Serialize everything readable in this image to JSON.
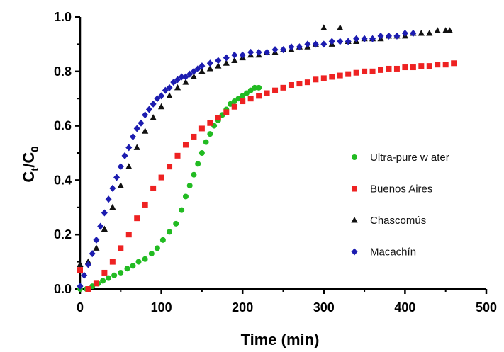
{
  "chart_data": {
    "type": "scatter",
    "title": "",
    "xlabel": "Time (min)",
    "ylabel": {
      "main": "C",
      "sub1": "t",
      "sep": "/C",
      "sub2": "0"
    },
    "xlim": [
      0,
      500
    ],
    "ylim": [
      0,
      1.0
    ],
    "xticks": [
      0,
      100,
      200,
      300,
      400,
      500
    ],
    "yticks": [
      0.0,
      0.2,
      0.4,
      0.6,
      0.8,
      1.0
    ],
    "xtick_labels": [
      "0",
      "100",
      "200",
      "300",
      "400",
      "500"
    ],
    "ytick_labels": [
      "0.0",
      "0.2",
      "0.4",
      "0.6",
      "0.8",
      "1.0"
    ],
    "grid": false,
    "legend_position": "center-right",
    "series": [
      {
        "name": "Ultra-pure w ater",
        "marker": "circle",
        "color": "#22bb22",
        "x": [
          0,
          8,
          15,
          22,
          28,
          35,
          42,
          50,
          58,
          65,
          72,
          80,
          88,
          95,
          102,
          110,
          118,
          125,
          130,
          135,
          140,
          145,
          150,
          155,
          160,
          165,
          170,
          175,
          180,
          185,
          190,
          195,
          200,
          205,
          210,
          215,
          220
        ],
        "y": [
          0.0,
          0.0,
          0.01,
          0.02,
          0.03,
          0.04,
          0.05,
          0.06,
          0.075,
          0.085,
          0.1,
          0.11,
          0.13,
          0.15,
          0.18,
          0.21,
          0.24,
          0.29,
          0.34,
          0.38,
          0.42,
          0.46,
          0.5,
          0.54,
          0.57,
          0.6,
          0.62,
          0.64,
          0.66,
          0.68,
          0.69,
          0.7,
          0.71,
          0.72,
          0.73,
          0.74,
          0.74
        ]
      },
      {
        "name": "Buenos Aires",
        "marker": "square",
        "color": "#ee2222",
        "x": [
          0,
          10,
          20,
          30,
          40,
          50,
          60,
          70,
          80,
          90,
          100,
          110,
          120,
          130,
          140,
          150,
          160,
          170,
          180,
          190,
          200,
          210,
          220,
          230,
          240,
          250,
          260,
          270,
          280,
          290,
          300,
          310,
          320,
          330,
          340,
          350,
          360,
          370,
          380,
          390,
          400,
          410,
          420,
          430,
          440,
          450,
          460
        ],
        "y": [
          0.07,
          0.0,
          0.02,
          0.06,
          0.1,
          0.15,
          0.2,
          0.26,
          0.31,
          0.37,
          0.41,
          0.45,
          0.49,
          0.53,
          0.56,
          0.59,
          0.61,
          0.63,
          0.65,
          0.67,
          0.69,
          0.7,
          0.71,
          0.72,
          0.73,
          0.74,
          0.75,
          0.755,
          0.76,
          0.77,
          0.775,
          0.78,
          0.785,
          0.79,
          0.795,
          0.8,
          0.8,
          0.805,
          0.81,
          0.81,
          0.815,
          0.815,
          0.82,
          0.82,
          0.825,
          0.825,
          0.83
        ]
      },
      {
        "name": "Chascomús",
        "marker": "triangle",
        "color": "#111111",
        "x": [
          0,
          10,
          20,
          30,
          40,
          50,
          60,
          70,
          80,
          90,
          100,
          110,
          120,
          130,
          140,
          150,
          160,
          170,
          180,
          190,
          200,
          210,
          220,
          230,
          240,
          250,
          260,
          270,
          280,
          290,
          300,
          310,
          320,
          330,
          340,
          350,
          360,
          370,
          380,
          390,
          400,
          410,
          420,
          430,
          440,
          450,
          455
        ],
        "y": [
          0.09,
          0.1,
          0.15,
          0.22,
          0.3,
          0.38,
          0.45,
          0.52,
          0.58,
          0.63,
          0.67,
          0.71,
          0.74,
          0.76,
          0.78,
          0.8,
          0.81,
          0.82,
          0.83,
          0.84,
          0.85,
          0.86,
          0.86,
          0.87,
          0.87,
          0.88,
          0.88,
          0.89,
          0.89,
          0.9,
          0.96,
          0.9,
          0.96,
          0.91,
          0.91,
          0.92,
          0.92,
          0.92,
          0.93,
          0.93,
          0.93,
          0.94,
          0.94,
          0.94,
          0.95,
          0.95,
          0.95
        ]
      },
      {
        "name": "Macachín",
        "marker": "diamond",
        "color": "#1c1cb0",
        "x": [
          0,
          5,
          10,
          15,
          20,
          25,
          30,
          35,
          40,
          45,
          50,
          55,
          60,
          65,
          70,
          75,
          80,
          85,
          90,
          95,
          100,
          105,
          110,
          115,
          120,
          125,
          130,
          135,
          140,
          145,
          150,
          160,
          170,
          180,
          190,
          200,
          210,
          220,
          230,
          240,
          250,
          260,
          270,
          280,
          290,
          300,
          310,
          320,
          330,
          340,
          350,
          360,
          370,
          380,
          390,
          400,
          410
        ],
        "y": [
          0.01,
          0.05,
          0.09,
          0.13,
          0.18,
          0.23,
          0.28,
          0.33,
          0.37,
          0.41,
          0.45,
          0.49,
          0.52,
          0.56,
          0.59,
          0.61,
          0.64,
          0.66,
          0.68,
          0.7,
          0.71,
          0.73,
          0.74,
          0.76,
          0.77,
          0.78,
          0.78,
          0.79,
          0.8,
          0.81,
          0.82,
          0.83,
          0.84,
          0.85,
          0.86,
          0.86,
          0.87,
          0.87,
          0.87,
          0.88,
          0.88,
          0.89,
          0.89,
          0.9,
          0.9,
          0.9,
          0.91,
          0.91,
          0.91,
          0.92,
          0.92,
          0.92,
          0.93,
          0.93,
          0.93,
          0.94,
          0.94
        ]
      }
    ]
  }
}
